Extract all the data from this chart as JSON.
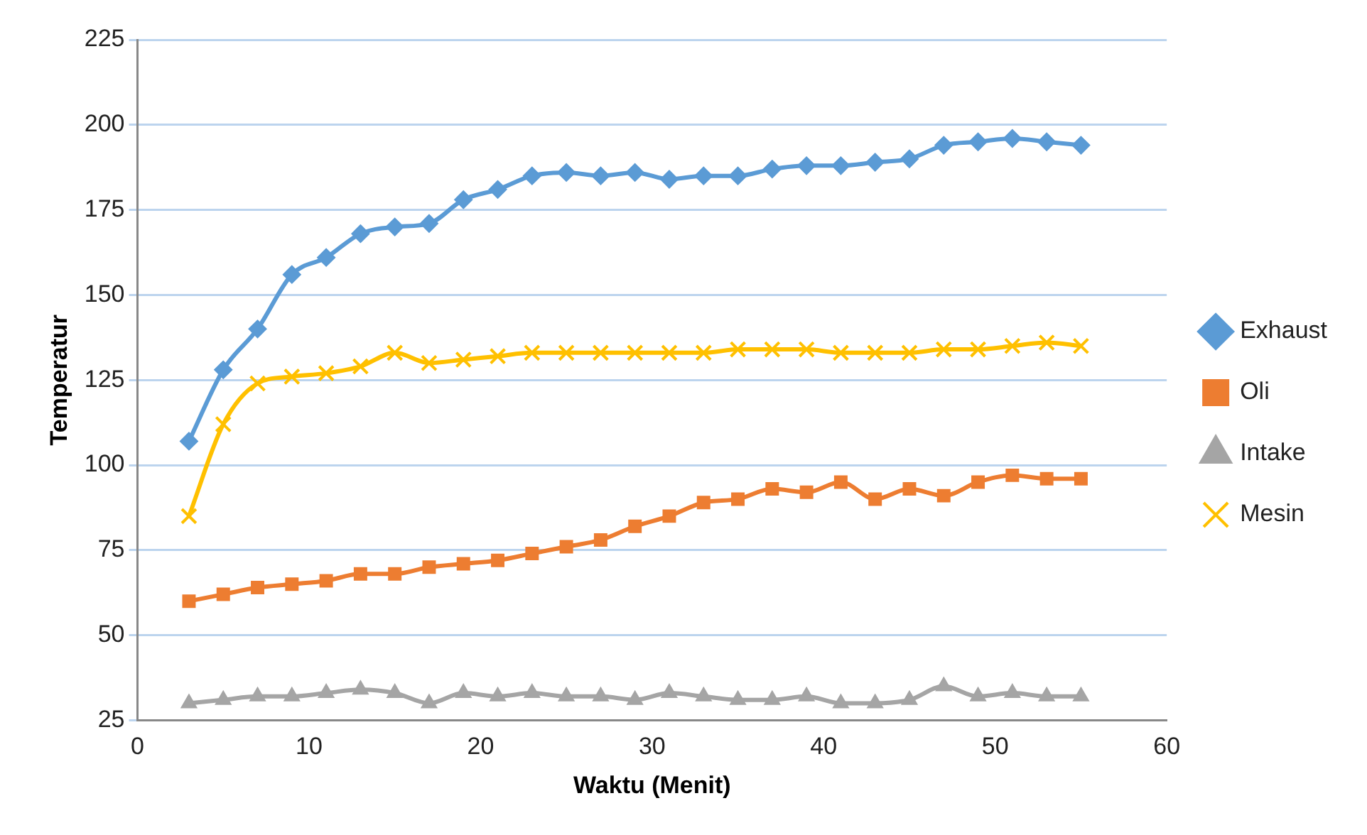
{
  "chart_data": {
    "type": "line",
    "xlabel": "Waktu (Menit)",
    "ylabel": "Temperatur",
    "x": [
      3,
      5,
      7,
      9,
      11,
      13,
      15,
      17,
      19,
      21,
      23,
      25,
      27,
      29,
      31,
      33,
      35,
      37,
      39,
      41,
      43,
      45,
      47,
      49,
      51,
      53,
      55
    ],
    "xlim": [
      0,
      60
    ],
    "xticks": [
      0,
      10,
      20,
      30,
      40,
      50,
      60
    ],
    "ylim": [
      25,
      225
    ],
    "yticks": [
      25,
      50,
      75,
      100,
      125,
      150,
      175,
      200,
      225
    ],
    "grid": "y",
    "legend": "right",
    "line_style": "solid",
    "series": [
      {
        "name": "Exhaust",
        "color": "#5b9bd5",
        "marker": "diamond",
        "values": [
          107,
          128,
          140,
          156,
          161,
          168,
          170,
          171,
          178,
          181,
          185,
          186,
          185,
          186,
          184,
          185,
          185,
          187,
          188,
          188,
          189,
          190,
          194,
          195,
          196,
          195,
          194
        ]
      },
      {
        "name": "Oli",
        "color": "#ed7d31",
        "marker": "square",
        "values": [
          60,
          62,
          64,
          65,
          66,
          68,
          68,
          70,
          71,
          72,
          74,
          76,
          78,
          82,
          85,
          89,
          90,
          93,
          92,
          95,
          90,
          93,
          91,
          95,
          97,
          96,
          96
        ]
      },
      {
        "name": "Intake",
        "color": "#a5a5a5",
        "marker": "triangle",
        "values": [
          30,
          31,
          32,
          32,
          33,
          34,
          33,
          30,
          33,
          32,
          33,
          32,
          32,
          31,
          33,
          32,
          31,
          31,
          32,
          30,
          30,
          31,
          35,
          32,
          33,
          32,
          32
        ]
      },
      {
        "name": "Mesin",
        "color": "#ffc000",
        "marker": "cross",
        "values": [
          85,
          112,
          124,
          126,
          127,
          129,
          133,
          130,
          131,
          132,
          133,
          133,
          133,
          133,
          133,
          133,
          134,
          134,
          134,
          133,
          133,
          133,
          134,
          134,
          135,
          136,
          135
        ]
      }
    ]
  }
}
